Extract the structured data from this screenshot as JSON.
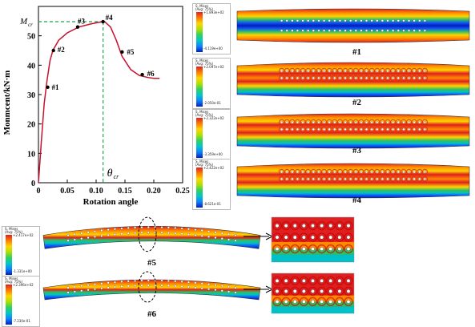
{
  "chart_data": {
    "type": "line",
    "xlabel": "Rotation angle",
    "ylabel": "Monmcent/kN·m",
    "xlim": [
      0,
      0.25
    ],
    "ylim": [
      0,
      60
    ],
    "xticks": [
      "0",
      "0.05",
      "0.10",
      "0.15",
      "0.20",
      "0.25"
    ],
    "yticks": [
      "0",
      "10",
      "20",
      "30",
      "40",
      "50"
    ],
    "series": [
      {
        "color": "#c8102e",
        "x": [
          0,
          0.005,
          0.01,
          0.015,
          0.02,
          0.025,
          0.035,
          0.05,
          0.07,
          0.09,
          0.105,
          0.115,
          0.125,
          0.135,
          0.145,
          0.16,
          0.175,
          0.19,
          0.2,
          0.21
        ],
        "y": [
          0,
          14,
          27,
          35,
          41.5,
          45,
          48.5,
          51,
          53,
          54,
          54.6,
          54.8,
          53,
          48.5,
          43,
          38.5,
          36.5,
          35.8,
          35.5,
          35.5
        ]
      }
    ],
    "points": [
      {
        "label": "#1",
        "x": 0.016,
        "y": 32.5
      },
      {
        "label": "#2",
        "x": 0.026,
        "y": 45
      },
      {
        "label": "#3",
        "x": 0.068,
        "y": 53
      },
      {
        "label": "#4",
        "x": 0.112,
        "y": 54.8
      },
      {
        "label": "#5",
        "x": 0.145,
        "y": 44.5
      },
      {
        "label": "#6",
        "x": 0.18,
        "y": 36.8
      }
    ],
    "annotations": {
      "mcr": "M",
      "mcr_sub": "cr",
      "theta": "θ",
      "theta_sub": "cr"
    },
    "guide_x": 0.112,
    "guide_y": 54.8,
    "guide_color": "#2eaa5a",
    "grid": false
  },
  "panels": [
    {
      "id": "#1",
      "min": "-4.119e+00",
      "max": "+1.893e+02",
      "legend_title": "S, Mises",
      "legend_sub": "(Avg: 75%)"
    },
    {
      "id": "#2",
      "min": "-2.050e-01",
      "max": "+2.097e+02",
      "legend_title": "S, Mises",
      "legend_sub": "(Avg: 75%)"
    },
    {
      "id": "#3",
      "min": "-3.359e+00",
      "max": "+2.322e+02",
      "legend_title": "S, Mises",
      "legend_sub": "(Avg: 75%)"
    },
    {
      "id": "#4",
      "min": "-8.621e-01",
      "max": "+2.422e+02",
      "legend_title": "S, Mises",
      "legend_sub": "(Avg: 75%)"
    },
    {
      "id": "#5",
      "min": "-1.331e+00",
      "max": "+2.417e+02",
      "legend_title": "S, Mises",
      "legend_sub": "(Avg: 75%)"
    },
    {
      "id": "#6",
      "min": "-7.230e-01",
      "max": "+2.396e+02",
      "legend_title": "S, Mises",
      "legend_sub": "(Avg: 75%)"
    }
  ],
  "colors": {
    "red": "#e02020",
    "orange": "#ff8a00",
    "yellow": "#ffd400",
    "green": "#30c060",
    "cyan": "#00c0c8",
    "blue": "#1050ff",
    "darkblue": "#0020b0"
  }
}
